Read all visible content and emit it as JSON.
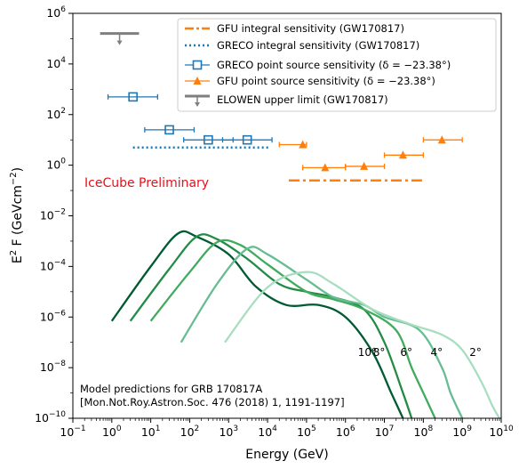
{
  "chart_data": {
    "type": "line",
    "xlabel": {
      "main": "Energy (GeV)"
    },
    "ylabel": {
      "pre": "E",
      "sup": "2",
      "mid": " F (GeVcm",
      "sup2": "−2",
      "post": ")"
    },
    "x_axis": {
      "scale": "log",
      "range_exp": [
        -1,
        10
      ],
      "tick_exps": [
        -1,
        0,
        1,
        2,
        3,
        4,
        5,
        6,
        7,
        8,
        9,
        10
      ]
    },
    "y_axis": {
      "scale": "log",
      "range_exp": [
        -10,
        6
      ],
      "tick_exps": [
        -10,
        -8,
        -6,
        -4,
        -2,
        0,
        2,
        4,
        6
      ]
    },
    "tick_base": "10",
    "preliminary_text": "IceCube Preliminary",
    "preliminary_color": "#e8101a",
    "legend": {
      "position": "top-right",
      "entries": [
        {
          "label": "GFU integral sensitivity (GW170817)",
          "marker": "dashdot",
          "color": "#ff7f0e"
        },
        {
          "label": "GRECO integral sensitivity (GW170817)",
          "marker": "dotted",
          "color": "#1f77b4"
        },
        {
          "label": "GRECO point source sensitivity (δ = −23.38°)",
          "marker": "square",
          "color": "#1f77b4"
        },
        {
          "label": "GFU point source sensitivity (δ = −23.38°)",
          "marker": "triangle",
          "color": "#ff7f0e"
        },
        {
          "label": "ELOWEN upper limit (GW170817)",
          "marker": "upper-limit",
          "color": "#7f7f7f"
        }
      ]
    },
    "annotation_lines": [
      "Model predictions for GRB 170817A",
      "[Mon.Not.Roy.Astron.Soc. 476 (2018) 1, 1191-1197]"
    ],
    "integral": [
      {
        "name": "GFU integral sensitivity (GW170817)",
        "color": "#ff7f0e",
        "x_range": [
          35000.0,
          100000000.0
        ],
        "y": 0.25
      },
      {
        "name": "GRECO integral sensitivity (GW170817)",
        "color": "#1f77b4",
        "x_range": [
          3.5,
          12000.0
        ],
        "y": 5.0
      }
    ],
    "greco_points": {
      "color": "#1f77b4",
      "points": [
        {
          "x": 3.5,
          "xlo": 0.8,
          "xhi": 15,
          "y": 500
        },
        {
          "x": 30,
          "xlo": 7,
          "xhi": 130,
          "y": 25
        },
        {
          "x": 300,
          "xlo": 70,
          "xhi": 1300,
          "y": 10
        },
        {
          "x": 3000,
          "xlo": 700,
          "xhi": 13000,
          "y": 10
        }
      ]
    },
    "gfu_points": {
      "color": "#ff7f0e",
      "points": [
        {
          "x": 80000.0,
          "xlo": 20000.0,
          "xhi": 100000.0,
          "y": 6.5
        },
        {
          "x": 300000.0,
          "xlo": 80000.0,
          "xhi": 1000000.0,
          "y": 0.8
        },
        {
          "x": 3000000.0,
          "xlo": 1000000.0,
          "xhi": 10000000.0,
          "y": 0.9
        },
        {
          "x": 30000000.0,
          "xlo": 10000000.0,
          "xhi": 100000000.0,
          "y": 2.5
        },
        {
          "x": 300000000.0,
          "xlo": 100000000.0,
          "xhi": 1000000000.0,
          "y": 10
        }
      ]
    },
    "elowen": {
      "color": "#7f7f7f",
      "x_range": [
        0.5,
        5.0
      ],
      "y": 160000.0
    },
    "model_series": [
      {
        "angle": "10°",
        "color": "#005a32",
        "points": [
          [
            1.0,
            7e-07
          ],
          [
            10,
            0.0001
          ],
          [
            50,
            0.002
          ],
          [
            150,
            0.0015
          ],
          [
            1000,
            0.0003
          ],
          [
            5000,
            1.6e-05
          ],
          [
            30000.0,
            3e-06
          ],
          [
            200000.0,
            3e-06
          ],
          [
            1000000.0,
            1e-06
          ],
          [
            5000000.0,
            4e-08
          ],
          [
            15000000.0,
            1e-09
          ],
          [
            30000000.0,
            1e-10
          ]
        ]
      },
      {
        "angle": "8°",
        "color": "#238b45",
        "points": [
          [
            3.0,
            7e-07
          ],
          [
            30,
            8e-05
          ],
          [
            150,
            0.0015
          ],
          [
            500,
            0.0012
          ],
          [
            3000,
            0.0002
          ],
          [
            20000.0,
            2e-05
          ],
          [
            100000.0,
            1e-05
          ],
          [
            500000.0,
            6e-06
          ],
          [
            3000000.0,
            2e-06
          ],
          [
            10000000.0,
            1e-07
          ],
          [
            30000000.0,
            1e-09
          ],
          [
            50000000.0,
            1e-10
          ]
        ]
      },
      {
        "angle": "6°",
        "color": "#41ab5d",
        "points": [
          [
            10,
            7e-07
          ],
          [
            100,
            6e-05
          ],
          [
            500,
            0.0009
          ],
          [
            2000,
            0.0007
          ],
          [
            10000.0,
            0.00012
          ],
          [
            100000.0,
            1e-05
          ],
          [
            500000.0,
            5e-06
          ],
          [
            3000000.0,
            2e-06
          ],
          [
            20000000.0,
            3e-07
          ],
          [
            50000000.0,
            1e-08
          ],
          [
            100000000.0,
            1e-09
          ],
          [
            200000000.0,
            1e-10
          ]
        ]
      },
      {
        "angle": "4°",
        "color": "#66bd93",
        "points": [
          [
            60,
            1e-07
          ],
          [
            500,
            2e-05
          ],
          [
            3000,
            0.0005
          ],
          [
            10000.0,
            0.0003
          ],
          [
            100000.0,
            3e-05
          ],
          [
            500000.0,
            6e-06
          ],
          [
            3000000.0,
            3e-06
          ],
          [
            10000000.0,
            1e-06
          ],
          [
            80000000.0,
            3e-07
          ],
          [
            300000000.0,
            1e-08
          ],
          [
            500000000.0,
            1e-09
          ],
          [
            1000000000.0,
            1e-10
          ]
        ]
      },
      {
        "angle": "2°",
        "color": "#a8dec0",
        "points": [
          [
            800,
            1e-07
          ],
          [
            10000.0,
            1.5e-05
          ],
          [
            100000.0,
            6e-05
          ],
          [
            500000.0,
            2e-05
          ],
          [
            5000000.0,
            2e-06
          ],
          [
            50000000.0,
            5e-07
          ],
          [
            300000000.0,
            2e-07
          ],
          [
            1000000000.0,
            5e-08
          ],
          [
            3000000000.0,
            3e-09
          ],
          [
            6000000000.0,
            3e-10
          ],
          [
            9000000000.0,
            1e-10
          ]
        ]
      }
    ]
  }
}
